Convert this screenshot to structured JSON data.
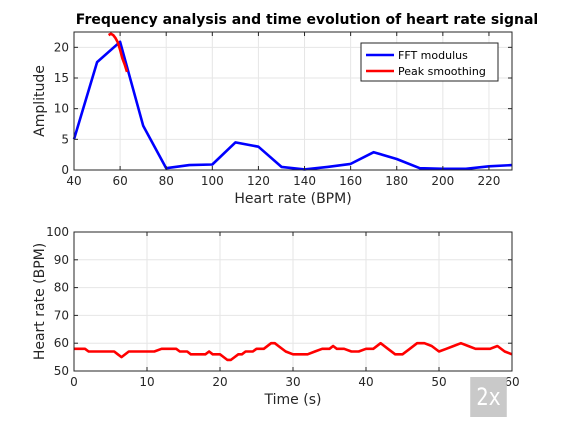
{
  "window": {
    "title": "Frequency analysis and time evolution of heart rate signal"
  },
  "zoom_badge": "2x",
  "colors": {
    "fft": "#0000ff",
    "smooth": "#ff0000",
    "axis": "#262626",
    "grid": "#e6e6e6"
  },
  "chart_data": [
    {
      "type": "line",
      "title": "Frequency analysis and time evolution of heart rate signal",
      "xlabel": "Heart rate (BPM)",
      "ylabel": "Amplitude",
      "xlim": [
        40,
        230
      ],
      "ylim": [
        0,
        22.5
      ],
      "xticks": [
        40,
        60,
        80,
        100,
        120,
        140,
        160,
        180,
        200,
        220
      ],
      "yticks": [
        0,
        5,
        10,
        15,
        20
      ],
      "grid": true,
      "legend_position": "top-right",
      "series": [
        {
          "name": "FFT modulus",
          "color": "#0000ff",
          "x": [
            40,
            50,
            60,
            70,
            80,
            90,
            100,
            110,
            120,
            130,
            140,
            150,
            160,
            170,
            180,
            190,
            200,
            210,
            220,
            230
          ],
          "y": [
            5.0,
            17.6,
            20.9,
            7.2,
            0.3,
            0.8,
            0.9,
            4.5,
            3.8,
            0.5,
            0.1,
            0.5,
            1.0,
            2.9,
            1.8,
            0.3,
            0.2,
            0.2,
            0.6,
            0.8
          ]
        },
        {
          "name": "Peak smoothing",
          "color": "#ff0000",
          "x": [
            55,
            56,
            57,
            58,
            59,
            60,
            61,
            62,
            63
          ],
          "y": [
            22.0,
            22.2,
            22.0,
            21.5,
            20.8,
            19.6,
            18.2,
            17.2,
            16.0
          ]
        }
      ]
    },
    {
      "type": "line",
      "title": "",
      "xlabel": "Time (s)",
      "ylabel": "Heart rate (BPM)",
      "xlim": [
        0,
        60
      ],
      "ylim": [
        50,
        100
      ],
      "xticks": [
        0,
        10,
        20,
        30,
        40,
        50,
        60
      ],
      "yticks": [
        50,
        60,
        70,
        80,
        90,
        100
      ],
      "grid": true,
      "series": [
        {
          "name": "",
          "color": "#ff0000",
          "x": [
            0,
            1.5,
            2,
            3,
            4,
            5.5,
            6,
            6.5,
            7.5,
            8,
            9,
            10,
            11,
            12,
            12.5,
            14,
            14.5,
            15.5,
            16,
            17,
            18,
            18.5,
            19,
            20,
            20.5,
            21,
            21.5,
            22,
            22.5,
            23,
            23.5,
            24,
            24.5,
            25,
            26,
            27,
            27.5,
            28,
            29,
            30,
            31,
            32,
            33,
            34,
            35,
            35.5,
            36,
            37,
            38,
            39,
            40,
            41,
            42,
            43,
            44,
            45,
            46,
            47,
            48,
            49,
            50,
            51,
            52,
            53,
            54,
            55,
            56,
            57,
            58,
            59,
            60
          ],
          "y": [
            58,
            58,
            57,
            57,
            57,
            57,
            56,
            55,
            57,
            57,
            57,
            57,
            57,
            58,
            58,
            58,
            57,
            57,
            56,
            56,
            56,
            57,
            56,
            56,
            55,
            54,
            54,
            55,
            56,
            56,
            57,
            57,
            57,
            58,
            58,
            60,
            60,
            59,
            57,
            56,
            56,
            56,
            57,
            58,
            58,
            59,
            58,
            58,
            57,
            57,
            58,
            58,
            60,
            58,
            56,
            56,
            58,
            60,
            60,
            59,
            57,
            58,
            59,
            60,
            59,
            58,
            58,
            58,
            59,
            57,
            56
          ]
        }
      ]
    }
  ]
}
